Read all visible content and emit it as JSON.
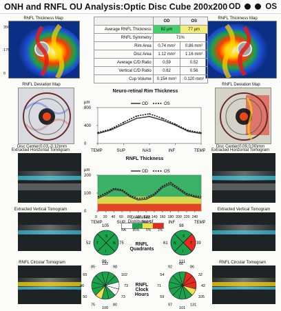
{
  "header": {
    "title": "ONH and RNFL OU Analysis:Optic Disc Cube 200x200",
    "od": "OD",
    "os": "OS"
  },
  "left": {
    "thickness_map_title": "RNFL Thickness Map",
    "scale_350": "350",
    "scale_175": "175",
    "scale_0": "0",
    "deviation_map_title": "RNFL Deviation Map",
    "disc_center": "Disc Center(0.03,-0.12)mm",
    "horizontal_tomogram_title": "Extracted Horizontal Tomogram",
    "vertical_tomogram_title": "Extracted Vertical Tomogram",
    "circular_tomogram_title": "RNFL Circular Tomogram"
  },
  "right": {
    "thickness_map_title": "RNFL Thickness Map",
    "deviation_map_title": "RNFL Deviation Map",
    "disc_center": "Disc Center(0.09,0.00)mm",
    "horizontal_tomogram_title": "Extracted Horizontal Tomogram",
    "vertical_tomogram_title": "Extracted Vertical Tomogram",
    "circular_tomogram_title": "RNFL Circular Tomogram"
  },
  "metrics": {
    "header": {
      "blank": "",
      "od": "OD",
      "os": "OS"
    },
    "rows": [
      {
        "label": "Average RNFL Thickness",
        "od": "82 µm",
        "os": "77 µm"
      },
      {
        "label": "RNFL Symmetry",
        "value": "71%"
      },
      {
        "label": "Rim Area",
        "od": "0.74 mm²",
        "os": "0.86 mm²"
      },
      {
        "label": "Disc Area",
        "od": "1.12 mm²",
        "os": "1.16 mm²"
      },
      {
        "label": "Average C/D Ratio",
        "od": "0.59",
        "os": "0.52"
      },
      {
        "label": "Vertical C/D Ratio",
        "od": "0.62",
        "os": "0.56"
      },
      {
        "label": "Cup Volume",
        "od": "0.154 mm³",
        "os": "0.120 mm³"
      }
    ]
  },
  "legend": {
    "title": "Diversified Distribution of Normals",
    "labels": [
      "NA",
      "95%",
      "5%",
      "1%"
    ]
  },
  "colors": {
    "od_series": "#444444",
    "os_series": "#111111",
    "normal_green": "#19a34a",
    "borderline_yellow": "#f2e04a",
    "abnormal_red": "#e62a1e",
    "na_white": "#ffffff"
  },
  "quadrants": {
    "label": "RNFL Quadrants",
    "left": {
      "top": "105",
      "left": "52",
      "right": "75",
      "bottom": "96"
    },
    "right": {
      "top": "98",
      "left": "61",
      "right": "39",
      "bottom": "111"
    }
  },
  "clock_hours": {
    "label": "RNFL Clock Hours",
    "left": [
      "132",
      "98",
      "102",
      "73",
      "73",
      "80",
      "100",
      "75",
      "50",
      "40",
      "65",
      "85"
    ],
    "right": [
      "66",
      "86",
      "32",
      "42",
      "105",
      "131",
      "101",
      "97",
      "59",
      "71",
      "54",
      "92"
    ]
  },
  "charts": {
    "rim": {
      "title": "Neuro-retinal Rim Thickness",
      "y_unit": "µm",
      "y_ticks": [
        "800",
        "400",
        "0"
      ],
      "x_ticks": [
        "TEMP",
        "SUP",
        "NAS",
        "INF",
        "TEMP"
      ]
    },
    "rnfl": {
      "title": "RNFL Thickness",
      "y_unit": "µm",
      "y_ticks": [
        "200",
        "100",
        "0"
      ],
      "x_ticks": [
        "0",
        "20",
        "40",
        "60",
        "80",
        "100",
        "120",
        "140",
        "160",
        "180",
        "200",
        "220",
        "240"
      ],
      "x_labels": [
        "TEMP",
        "SUP",
        "NAS",
        "INF",
        "TEMP"
      ]
    }
  },
  "chart_data": [
    {
      "type": "line",
      "title": "Neuro-retinal Rim Thickness",
      "xlabel": "",
      "ylabel": "µm",
      "x": [
        0,
        45,
        90,
        135,
        180,
        225,
        270,
        315,
        360
      ],
      "ylim": [
        0,
        800
      ],
      "series": [
        {
          "name": "OD",
          "values": [
            220,
            300,
            430,
            560,
            600,
            520,
            410,
            270,
            220
          ]
        },
        {
          "name": "OS",
          "values": [
            240,
            320,
            470,
            610,
            660,
            560,
            430,
            290,
            240
          ]
        }
      ],
      "legend_position": "top-center",
      "grid": false
    },
    {
      "type": "area",
      "title": "RNFL Thickness",
      "xlabel": "",
      "ylabel": "µm",
      "x": [
        0,
        20,
        40,
        60,
        80,
        100,
        120,
        140,
        160,
        180,
        200,
        220,
        240,
        256
      ],
      "ylim": [
        0,
        200
      ],
      "series": [
        {
          "name": "OD",
          "values": [
            70,
            92,
            120,
            112,
            80,
            62,
            66,
            88,
            130,
            150,
            120,
            90,
            78,
            72
          ]
        },
        {
          "name": "OS",
          "values": [
            78,
            100,
            126,
            118,
            86,
            70,
            74,
            96,
            138,
            160,
            128,
            98,
            84,
            80
          ]
        }
      ],
      "legend_position": "top-center",
      "grid": false
    }
  ]
}
